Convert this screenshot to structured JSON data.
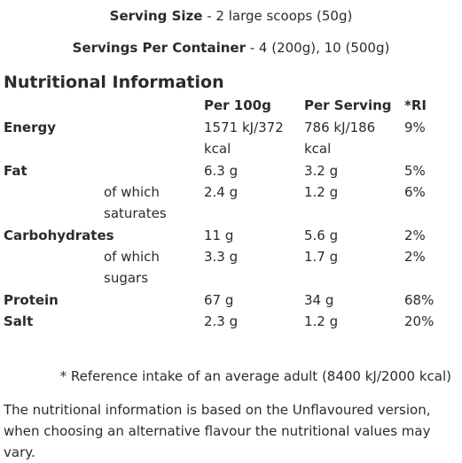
{
  "serving_size": {
    "label": "Serving Size",
    "value": " - 2 large scoops (50g)"
  },
  "servings_per_container": {
    "label": "Servings Per Container",
    "value": " - 4 (200g), 10 (500g)"
  },
  "heading": "Nutritional Information",
  "table": {
    "headers": {
      "per_100g": "Per 100g",
      "per_serving": "Per Serving",
      "ri": "*RI"
    },
    "rows": {
      "energy": {
        "name": "Energy",
        "per_100g_1": "1571 kJ/372",
        "per_100g_2": "kcal",
        "per_serving_1": "786 kJ/186",
        "per_serving_2": "kcal",
        "ri": "9%"
      },
      "fat": {
        "name": "Fat",
        "per_100g": "6.3 g",
        "per_serving": "3.2 g",
        "ri": "5%"
      },
      "saturates": {
        "label_1": "of which",
        "label_2": "saturates",
        "per_100g": "2.4 g",
        "per_serving": "1.2 g",
        "ri": "6%"
      },
      "carbohydrates": {
        "name": "Carbohydrates",
        "per_100g": "11 g",
        "per_serving": "5.6 g",
        "ri": "2%"
      },
      "sugars": {
        "label_1": "of which",
        "label_2": "sugars",
        "per_100g": "3.3 g",
        "per_serving": "1.7 g",
        "ri": "2%"
      },
      "protein": {
        "name": "Protein",
        "per_100g": "67 g",
        "per_serving": "34 g",
        "ri": "68%"
      },
      "salt": {
        "name": "Salt",
        "per_100g": "2.3 g",
        "per_serving": "1.2 g",
        "ri": "20%"
      }
    }
  },
  "footnote": "* Reference intake of an average adult (8400 kJ/2000 kcal)",
  "disclaimer": "The nutritional information is based on the Unflavoured version, when choosing an alternative flavour the nutritional values may vary."
}
